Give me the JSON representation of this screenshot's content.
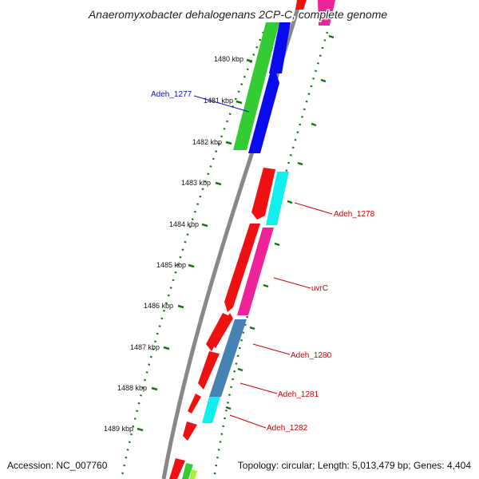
{
  "title": "Anaeromyxobacter dehalogenans 2CP-C, complete genome",
  "footer": {
    "accession": "Accession: NC_007760",
    "summary": "Topology: circular; Length: 5,013,479 bp; Genes: 4,404"
  },
  "ticks": [
    "1480 kbp",
    "1481 kbp",
    "1482 kbp",
    "1483 kbp",
    "1484 kbp",
    "1485 kbp",
    "1486 kbp",
    "1487 kbp",
    "1488 kbp",
    "1489 kbp"
  ],
  "gene_labels": [
    "Adeh_1277",
    "Adeh_1278",
    "uvrC",
    "Adeh_1280",
    "Adeh_1281",
    "Adeh_1282"
  ],
  "colors": {
    "cds": "#ee1111",
    "blue": "#0a0aee",
    "green": "#33cc33",
    "cyan": "#11eeee",
    "magenta": "#ee2299",
    "steelblue": "#4682b4",
    "backbone": "#888888",
    "tick": "#117711",
    "label_red": "#cc0000",
    "label_blue": "#1010c0"
  }
}
